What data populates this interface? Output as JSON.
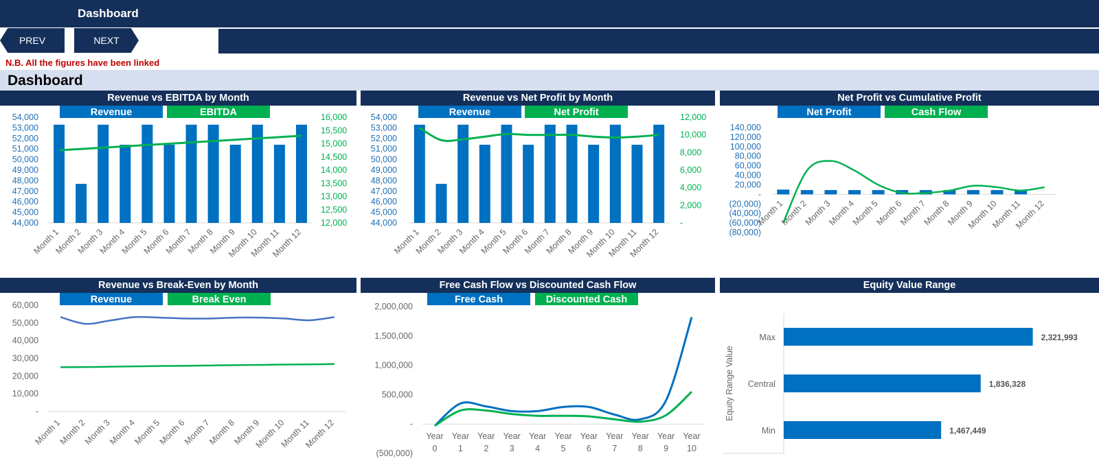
{
  "header": {
    "title": "Dashboard"
  },
  "nav": {
    "prev": "PREV",
    "next": "NEXT"
  },
  "note": "N.B. All the figures have been linked",
  "section_title": "Dashboard",
  "colors": {
    "navy": "#14305a",
    "blue": "#0070c0",
    "green": "#00b050",
    "band": "#d6dff0",
    "red": "#c00000"
  },
  "months": [
    "Month 1",
    "Month 2",
    "Month 3",
    "Month 4",
    "Month 5",
    "Month 6",
    "Month 7",
    "Month 8",
    "Month 9",
    "Month 10",
    "Month 11",
    "Month 12"
  ],
  "charts": {
    "rev_ebitda": {
      "title": "Revenue vs EBITDA by Month",
      "legend": [
        "Revenue",
        "EBITDA"
      ],
      "left_ticks": [
        "54,000",
        "53,000",
        "52,000",
        "51,000",
        "50,000",
        "49,000",
        "48,000",
        "47,000",
        "46,000",
        "45,000",
        "44,000"
      ],
      "right_ticks": [
        "16,000",
        "15,500",
        "15,000",
        "14,500",
        "14,000",
        "13,500",
        "13,000",
        "12,500",
        "12,000"
      ]
    },
    "rev_np": {
      "title": "Revenue vs Net Profit by Month",
      "legend": [
        "Revenue",
        "Net Profit"
      ],
      "left_ticks": [
        "54,000",
        "53,000",
        "52,000",
        "51,000",
        "50,000",
        "49,000",
        "48,000",
        "47,000",
        "46,000",
        "45,000",
        "44,000"
      ],
      "right_ticks": [
        "12,000",
        "10,000",
        "8,000",
        "6,000",
        "4,000",
        "2,000",
        "-"
      ]
    },
    "np_cum": {
      "title": "Net Profit vs Cumulative Profit",
      "legend": [
        "Net Profit",
        "Cash Flow"
      ],
      "left_ticks": [
        "140,000",
        "120,000",
        "100,000",
        "80,000",
        "60,000",
        "40,000",
        "20,000",
        "-",
        "(20,000)",
        "(40,000)",
        "(60,000)",
        "(80,000)"
      ]
    },
    "rev_be": {
      "title": "Revenue vs Break-Even by Month",
      "legend": [
        "Revenue",
        "Break Even"
      ],
      "left_ticks": [
        "60,000",
        "50,000",
        "40,000",
        "30,000",
        "20,000",
        "10,000",
        "-"
      ]
    },
    "fcf_dcf": {
      "title": "Free Cash Flow vs Discounted Cash Flow",
      "legend": [
        "Free Cash",
        "Discounted Cash"
      ],
      "left_ticks": [
        "2,000,000",
        "1,500,000",
        "1,000,000",
        "500,000",
        "-",
        "(500,000)"
      ],
      "year_word": "Year",
      "years": [
        "0",
        "1",
        "2",
        "3",
        "4",
        "5",
        "6",
        "7",
        "8",
        "9",
        "10"
      ]
    },
    "equity": {
      "title": "Equity Value Range",
      "axis_title": "Equity Range Value",
      "categories": [
        "Max",
        "Central",
        "Min"
      ],
      "value_labels": [
        "2,321,993",
        "1,836,328",
        "1,467,449"
      ]
    }
  },
  "chart_data": [
    {
      "type": "bar",
      "title": "Revenue vs EBITDA by Month",
      "categories": [
        "Month 1",
        "Month 2",
        "Month 3",
        "Month 4",
        "Month 5",
        "Month 6",
        "Month 7",
        "Month 8",
        "Month 9",
        "Month 10",
        "Month 11",
        "Month 12"
      ],
      "series": [
        {
          "name": "Revenue",
          "values": [
            53300,
            47700,
            53300,
            51400,
            53300,
            51400,
            53300,
            53300,
            51400,
            53300,
            51400,
            53300
          ]
        },
        {
          "name": "EBITDA",
          "values": [
            14750,
            14800,
            14850,
            14900,
            14950,
            15000,
            15050,
            15100,
            15150,
            15200,
            15250,
            15300
          ]
        }
      ],
      "ylim": [
        44000,
        54000
      ],
      "y2lim": [
        12000,
        16000
      ]
    },
    {
      "type": "bar",
      "title": "Revenue vs Net Profit by Month",
      "categories": [
        "Month 1",
        "Month 2",
        "Month 3",
        "Month 4",
        "Month 5",
        "Month 6",
        "Month 7",
        "Month 8",
        "Month 9",
        "Month 10",
        "Month 11",
        "Month 12"
      ],
      "series": [
        {
          "name": "Revenue",
          "values": [
            53300,
            47700,
            53300,
            51400,
            53300,
            51400,
            53300,
            53300,
            51400,
            53300,
            51400,
            53300
          ]
        },
        {
          "name": "Net Profit",
          "values": [
            10800,
            9400,
            9500,
            9800,
            10100,
            10000,
            10000,
            10000,
            9800,
            9700,
            9800,
            10000
          ]
        }
      ],
      "ylim": [
        44000,
        54000
      ],
      "y2lim": [
        0,
        12000
      ]
    },
    {
      "type": "bar",
      "title": "Net Profit vs Cumulative Profit",
      "categories": [
        "Month 1",
        "Month 2",
        "Month 3",
        "Month 4",
        "Month 5",
        "Month 6",
        "Month 7",
        "Month 8",
        "Month 9",
        "Month 10",
        "Month 11",
        "Month 12"
      ],
      "series": [
        {
          "name": "Net Profit",
          "values": [
            10000,
            9000,
            9000,
            9000,
            9000,
            9000,
            9000,
            9000,
            9000,
            9000,
            9000,
            null
          ]
        },
        {
          "name": "Cash Flow",
          "values": [
            -60000,
            50000,
            70000,
            50000,
            20000,
            3000,
            3000,
            8000,
            18000,
            15000,
            8000,
            15000
          ]
        }
      ],
      "ylim": [
        -80000,
        140000
      ]
    },
    {
      "type": "line",
      "title": "Revenue vs Break-Even by Month",
      "categories": [
        "Month 1",
        "Month 2",
        "Month 3",
        "Month 4",
        "Month 5",
        "Month 6",
        "Month 7",
        "Month 8",
        "Month 9",
        "Month 10",
        "Month 11",
        "Month 12"
      ],
      "series": [
        {
          "name": "Revenue",
          "values": [
            53300,
            49500,
            51400,
            53300,
            53000,
            52500,
            52500,
            53000,
            53000,
            52500,
            51500,
            53300
          ]
        },
        {
          "name": "Break Even",
          "values": [
            25000,
            25100,
            25300,
            25500,
            25700,
            25800,
            26000,
            26200,
            26300,
            26500,
            26600,
            26800
          ]
        }
      ],
      "ylim": [
        0,
        60000
      ]
    },
    {
      "type": "line",
      "title": "Free Cash Flow vs Discounted Cash Flow",
      "categories": [
        "Year 0",
        "Year 1",
        "Year 2",
        "Year 3",
        "Year 4",
        "Year 5",
        "Year 6",
        "Year 7",
        "Year 8",
        "Year 9",
        "Year 10"
      ],
      "series": [
        {
          "name": "Free Cash",
          "values": [
            -30000,
            350000,
            300000,
            220000,
            220000,
            290000,
            290000,
            160000,
            80000,
            400000,
            1820000
          ]
        },
        {
          "name": "Discounted Cash",
          "values": [
            -30000,
            230000,
            230000,
            170000,
            140000,
            140000,
            130000,
            80000,
            40000,
            150000,
            550000
          ]
        }
      ],
      "ylim": [
        -500000,
        2000000
      ]
    },
    {
      "type": "bar",
      "title": "Equity Value Range",
      "categories": [
        "Max",
        "Central",
        "Min"
      ],
      "values": [
        2321993,
        1836328,
        1467449
      ]
    }
  ]
}
